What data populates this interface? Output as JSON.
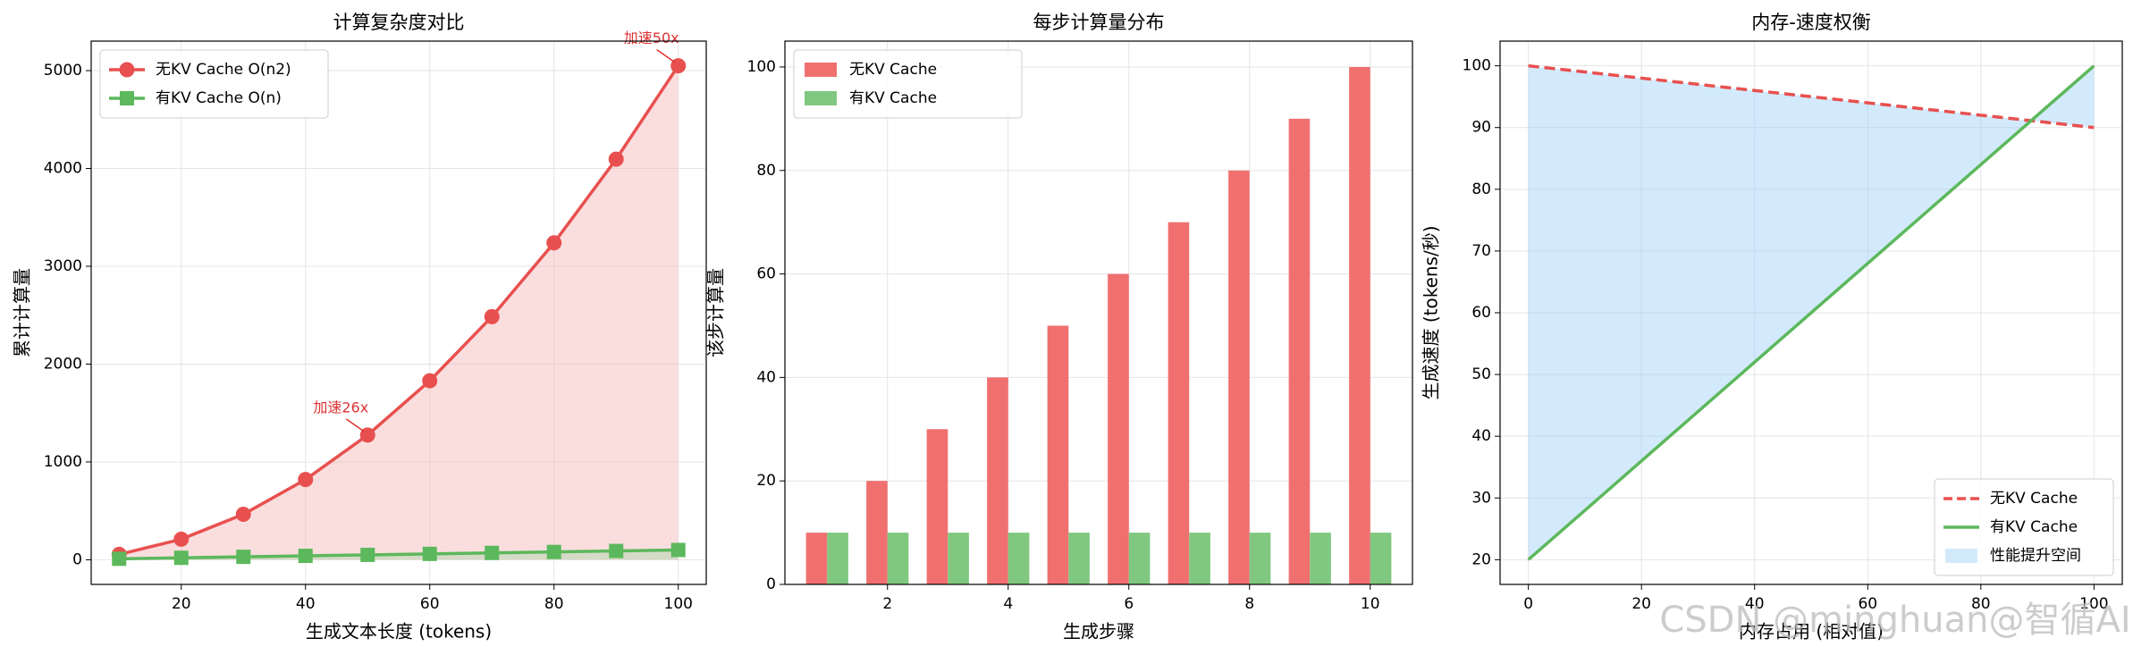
{
  "chart_data": [
    {
      "type": "line",
      "title": "计算复杂度对比",
      "xlabel": "生成文本长度 (tokens)",
      "ylabel": "累计计算量",
      "x": [
        10,
        20,
        30,
        40,
        50,
        60,
        70,
        80,
        90,
        100
      ],
      "series": [
        {
          "name": "无KV Cache O(n2)",
          "color": "#e8504f",
          "marker": "circle",
          "fill": "#f5b5b5",
          "values": [
            55,
            210,
            465,
            820,
            1275,
            1830,
            2485,
            3240,
            4095,
            5050
          ]
        },
        {
          "name": "有KV Cache O(n)",
          "color": "#5cb85c",
          "marker": "square",
          "fill": "#a8d8a8",
          "values": [
            10,
            20,
            30,
            40,
            50,
            60,
            70,
            80,
            90,
            100
          ]
        }
      ],
      "annotations": [
        {
          "text": "加速26x",
          "x": 50,
          "y": 1275
        },
        {
          "text": "加速50x",
          "x": 100,
          "y": 5050
        }
      ],
      "xlim": [
        5.5,
        104.5
      ],
      "ylim": [
        -252,
        5302
      ],
      "xticks": [
        20,
        40,
        60,
        80,
        100
      ],
      "yticks": [
        0,
        1000,
        2000,
        3000,
        4000,
        5000
      ],
      "grid": true,
      "legend": "upper left"
    },
    {
      "type": "bar",
      "title": "每步计算量分布",
      "xlabel": "生成步骤",
      "ylabel": "该步计算量",
      "x": [
        1,
        2,
        3,
        4,
        5,
        6,
        7,
        8,
        9,
        10
      ],
      "series": [
        {
          "name": "无KV Cache",
          "color": "#f07070",
          "values": [
            10,
            20,
            30,
            40,
            50,
            60,
            70,
            80,
            90,
            100
          ]
        },
        {
          "name": "有KV Cache",
          "color": "#80c880",
          "values": [
            10,
            10,
            10,
            10,
            10,
            10,
            10,
            10,
            10,
            10
          ]
        }
      ],
      "xlim": [
        0.3,
        10.7
      ],
      "ylim": [
        0,
        105
      ],
      "xticks": [
        2,
        4,
        6,
        8,
        10
      ],
      "yticks": [
        0,
        20,
        40,
        60,
        80,
        100
      ],
      "grid": true,
      "legend": "upper left"
    },
    {
      "type": "line",
      "title": "内存-速度权衡",
      "xlabel": "内存占用 (相对值)",
      "ylabel": "生成速度 (tokens/秒)",
      "x": [
        0,
        100
      ],
      "series": [
        {
          "name": "无KV Cache",
          "color": "#e8504f",
          "dash": true,
          "values": [
            100,
            90
          ]
        },
        {
          "name": "有KV Cache",
          "color": "#5cb85c",
          "values": [
            20,
            100
          ]
        }
      ],
      "fill_between": {
        "label": "性能提升空间",
        "color": "#90caf9"
      },
      "xlim": [
        -5,
        105
      ],
      "ylim": [
        16,
        104
      ],
      "xticks": [
        0,
        20,
        40,
        60,
        80,
        100
      ],
      "yticks": [
        20,
        30,
        40,
        50,
        60,
        70,
        80,
        90,
        100
      ],
      "grid": true,
      "legend": "lower right"
    }
  ],
  "watermark": "CSDN @minghuan@智循AI"
}
